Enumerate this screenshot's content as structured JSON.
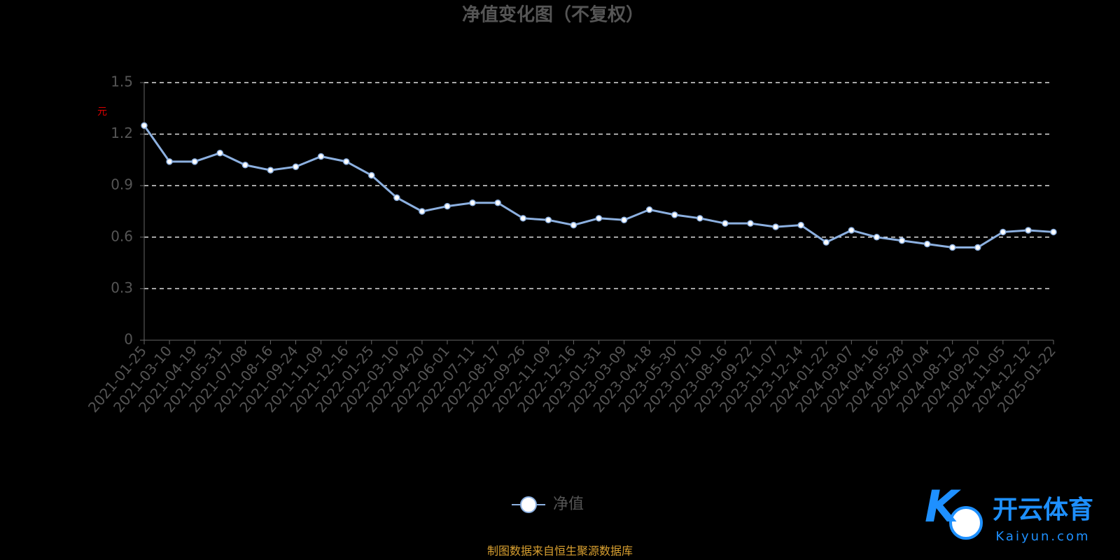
{
  "chart_data": {
    "type": "line",
    "title": "净值变化图（不复权）",
    "y_label": "元",
    "categories": [
      "2021-01-25",
      "2021-03-10",
      "2021-04-19",
      "2021-05-31",
      "2021-07-08",
      "2021-08-16",
      "2021-09-24",
      "2021-11-09",
      "2021-12-16",
      "2022-01-25",
      "2022-03-10",
      "2022-04-20",
      "2022-06-01",
      "2022-07-11",
      "2022-08-17",
      "2022-09-26",
      "2022-11-09",
      "2022-12-16",
      "2023-01-31",
      "2023-03-09",
      "2023-04-18",
      "2023-05-30",
      "2023-07-10",
      "2023-08-16",
      "2023-09-22",
      "2023-11-07",
      "2023-12-14",
      "2024-01-22",
      "2024-03-07",
      "2024-04-16",
      "2024-05-28",
      "2024-07-04",
      "2024-08-12",
      "2024-09-20",
      "2024-11-05",
      "2024-12-12",
      "2025-01-22"
    ],
    "series": [
      {
        "name": "净值",
        "color": "#8cb0e0",
        "values": [
          1.25,
          1.04,
          1.04,
          1.09,
          1.02,
          0.99,
          1.01,
          1.07,
          1.04,
          0.96,
          0.83,
          0.75,
          0.78,
          0.8,
          0.8,
          0.71,
          0.7,
          0.67,
          0.71,
          0.7,
          0.76,
          0.73,
          0.71,
          0.68,
          0.68,
          0.66,
          0.67,
          0.57,
          0.64,
          0.6,
          0.58,
          0.56,
          0.54,
          0.54,
          0.63,
          0.64,
          0.63
        ]
      }
    ],
    "ylim": [
      0,
      1.5
    ],
    "yticks": [
      0,
      0.3,
      0.6,
      0.9,
      1.2,
      1.5
    ],
    "grid": true,
    "legend": "bottom",
    "source": "制图数据来自恒生聚源数据库",
    "watermark": {
      "name": "开云体育",
      "site": "Kaiyun.com"
    }
  }
}
